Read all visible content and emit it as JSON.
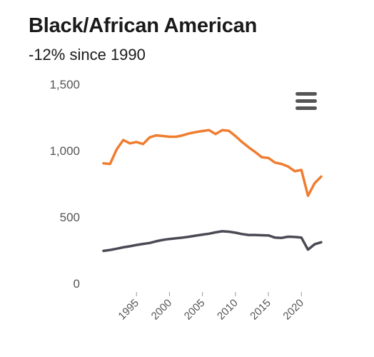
{
  "chart_data": {
    "type": "line",
    "title": "Black/African American",
    "subtitle": "-12% since 1990",
    "xlabel": "",
    "ylabel": "",
    "xlim": [
      1990,
      2023
    ],
    "ylim": [
      0,
      1500
    ],
    "y_ticks": [
      "0",
      "500",
      "1,000",
      "1,500"
    ],
    "y_tick_values": [
      0,
      500,
      1000,
      1500
    ],
    "x_ticks": [
      "1995",
      "2000",
      "2005",
      "2010",
      "2015",
      "2020"
    ],
    "x_tick_values": [
      1995,
      2000,
      2005,
      2010,
      2015,
      2020
    ],
    "grid": false,
    "legend": "none",
    "x": [
      1990,
      1991,
      1992,
      1993,
      1994,
      1995,
      1996,
      1997,
      1998,
      1999,
      2000,
      2001,
      2002,
      2003,
      2004,
      2005,
      2006,
      2007,
      2008,
      2009,
      2010,
      2011,
      2012,
      2013,
      2014,
      2015,
      2016,
      2017,
      2018,
      2019,
      2020,
      2021,
      2022,
      2023
    ],
    "series": [
      {
        "color": "#ef7d30",
        "values": [
          905,
          900,
          1010,
          1080,
          1055,
          1065,
          1050,
          1100,
          1115,
          1110,
          1105,
          1105,
          1115,
          1130,
          1140,
          1148,
          1155,
          1125,
          1155,
          1150,
          1110,
          1065,
          1025,
          990,
          950,
          945,
          910,
          900,
          880,
          845,
          855,
          660,
          755,
          805
        ]
      },
      {
        "color": "#4a4a55",
        "values": [
          245,
          252,
          262,
          272,
          280,
          290,
          298,
          305,
          318,
          328,
          335,
          340,
          345,
          352,
          360,
          368,
          375,
          385,
          393,
          390,
          382,
          372,
          365,
          365,
          363,
          362,
          345,
          343,
          352,
          350,
          345,
          255,
          295,
          310
        ]
      }
    ]
  },
  "menu": {
    "icon": "hamburger-menu-icon"
  }
}
